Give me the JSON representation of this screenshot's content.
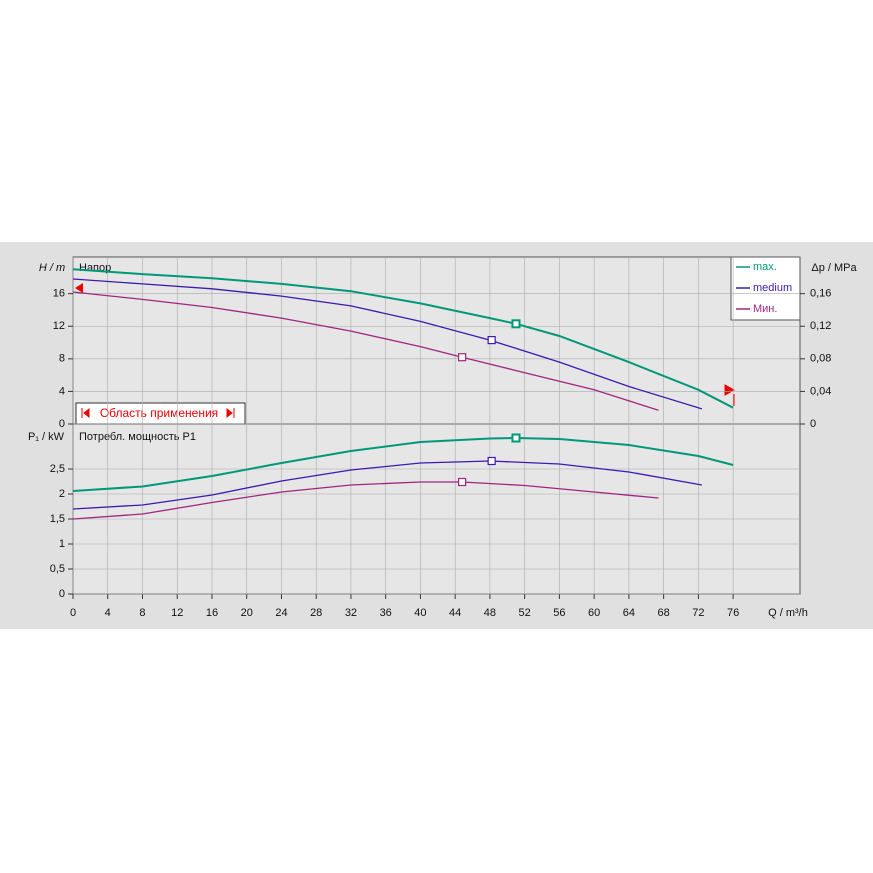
{
  "chart_data": [
    {
      "type": "line",
      "title": "Напор",
      "y_label": "H / m",
      "y2_label": "Δp / MPa",
      "xlim": [
        0,
        83.7
      ],
      "ylim": [
        0,
        20.5
      ],
      "yticks": [
        0,
        4,
        8,
        12,
        16
      ],
      "y2lim": [
        0,
        0.205
      ],
      "y2ticks": [
        0,
        {
          "value": 0.04,
          "label": "0,04"
        },
        {
          "value": 0.08,
          "label": "0,08"
        },
        {
          "value": 0.12,
          "label": "0,12"
        },
        {
          "value": 0.16,
          "label": "0,16"
        }
      ],
      "annotation": "Область применения",
      "grid": true,
      "legend": "upper right",
      "series": [
        {
          "name": "max.",
          "color": "#00987a",
          "x": [
            0,
            8,
            16,
            24,
            32,
            40,
            48,
            51,
            56,
            64,
            72,
            76
          ],
          "values": [
            19,
            18.4,
            17.9,
            17.2,
            16.3,
            14.8,
            13.0,
            12.3,
            10.8,
            7.6,
            4.2,
            2.0
          ],
          "marker_x": 51,
          "marker_y": 12.3
        },
        {
          "name": "medium",
          "color": "#3a1ab0",
          "x": [
            0,
            8,
            16,
            24,
            32,
            40,
            48,
            56,
            64,
            72.4
          ],
          "values": [
            17.8,
            17.2,
            16.6,
            15.7,
            14.5,
            12.6,
            10.3,
            7.6,
            4.6,
            1.85
          ],
          "marker_x": 48.2,
          "marker_y": 10.3
        },
        {
          "name": "Мин.",
          "color": "#a0257f",
          "x": [
            0,
            8,
            16,
            24,
            32,
            40,
            44.8,
            52,
            60,
            67.4
          ],
          "values": [
            16.2,
            15.3,
            14.3,
            13.0,
            11.4,
            9.5,
            8.2,
            6.3,
            4.2,
            1.7
          ],
          "marker_x": 44.8,
          "marker_y": 8.2
        }
      ]
    },
    {
      "type": "line",
      "title": "Потребл. мощность P1",
      "y_label": "P₁ / kW",
      "x_label": "Q / m³/h",
      "xlim": [
        0,
        83.7
      ],
      "xticks": [
        0,
        4,
        8,
        12,
        16,
        20,
        24,
        28,
        32,
        36,
        40,
        44,
        48,
        52,
        56,
        60,
        64,
        68,
        72,
        76
      ],
      "ylim": [
        0,
        3.4
      ],
      "yticks": [
        0,
        {
          "value": 0.5,
          "label": "0,5"
        },
        1,
        {
          "value": 1.5,
          "label": "1,5"
        },
        2,
        {
          "value": 2.5,
          "label": "2,5"
        }
      ],
      "grid": true,
      "series": [
        {
          "color": "#00987a",
          "x": [
            0,
            8,
            16,
            24,
            32,
            40,
            48,
            51,
            56,
            64,
            72,
            76
          ],
          "values": [
            2.06,
            2.15,
            2.36,
            2.62,
            2.86,
            3.04,
            3.11,
            3.12,
            3.1,
            2.98,
            2.76,
            2.58
          ],
          "marker_x": 51,
          "marker_y": 3.12
        },
        {
          "color": "#3a1ab0",
          "x": [
            0,
            8,
            16,
            24,
            32,
            40,
            48,
            56,
            64,
            72.4
          ],
          "values": [
            1.7,
            1.78,
            1.98,
            2.26,
            2.48,
            2.62,
            2.66,
            2.6,
            2.44,
            2.18
          ],
          "marker_x": 48.2,
          "marker_y": 2.66
        },
        {
          "color": "#a0257f",
          "x": [
            0,
            8,
            16,
            24,
            32,
            40,
            44.8,
            52,
            60,
            67.4
          ],
          "values": [
            1.5,
            1.6,
            1.83,
            2.04,
            2.18,
            2.24,
            2.24,
            2.17,
            2.04,
            1.92
          ],
          "marker_x": 44.8,
          "marker_y": 2.24
        }
      ]
    }
  ]
}
